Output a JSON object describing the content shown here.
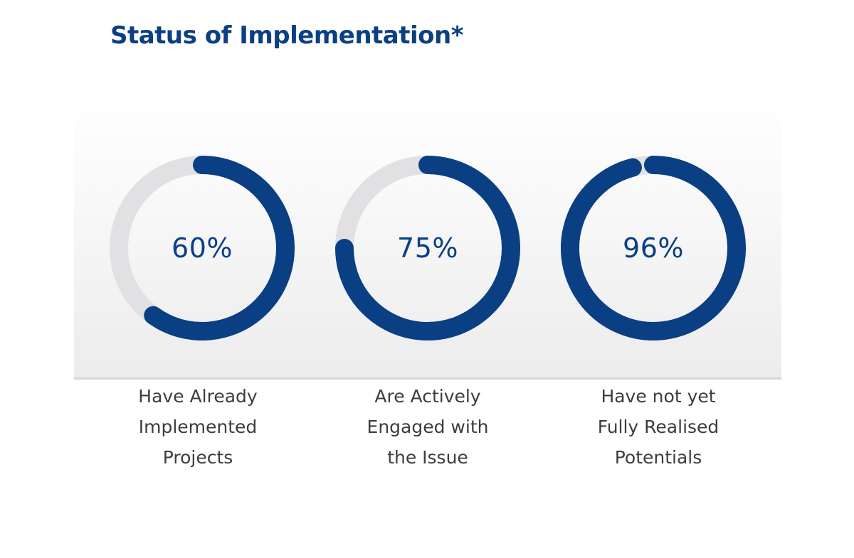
{
  "title": "Status of Implementation*",
  "colors": {
    "accent": "#0a3f83",
    "track": "#e1e1e3",
    "label": "#3d3d3d"
  },
  "chart_data": {
    "type": "donut",
    "items": [
      {
        "value": 60,
        "value_label": "60%",
        "label_lines": [
          "Have Already",
          "Implemented",
          "Projects"
        ]
      },
      {
        "value": 75,
        "value_label": "75%",
        "label_lines": [
          "Are Actively",
          "Engaged with",
          "the Issue"
        ]
      },
      {
        "value": 96,
        "value_label": "96%",
        "label_lines": [
          "Have not yet",
          "Fully Realised",
          "Potentials"
        ]
      }
    ]
  }
}
